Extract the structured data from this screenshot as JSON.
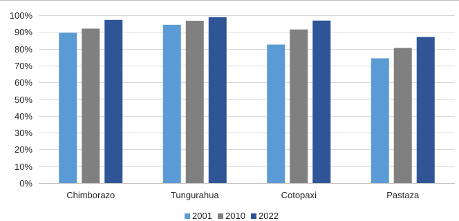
{
  "chart_data": {
    "type": "bar",
    "categories": [
      "Chimborazo",
      "Tungurahua",
      "Cotopaxi",
      "Pastaza"
    ],
    "series": [
      {
        "name": "2001",
        "values": [
          89.5,
          94.3,
          82.5,
          74.3
        ],
        "color": "#5b9bd5"
      },
      {
        "name": "2010",
        "values": [
          92.0,
          96.7,
          91.5,
          80.5
        ],
        "color": "#808080"
      },
      {
        "name": "2022",
        "values": [
          97.2,
          98.8,
          96.8,
          87.0
        ],
        "color": "#2f5597"
      }
    ],
    "yticks": [
      "0%",
      "10%",
      "20%",
      "30%",
      "40%",
      "50%",
      "60%",
      "70%",
      "80%",
      "90%",
      "100%"
    ],
    "ylim": [
      0,
      100
    ],
    "grid": true,
    "legend_position": "bottom"
  }
}
